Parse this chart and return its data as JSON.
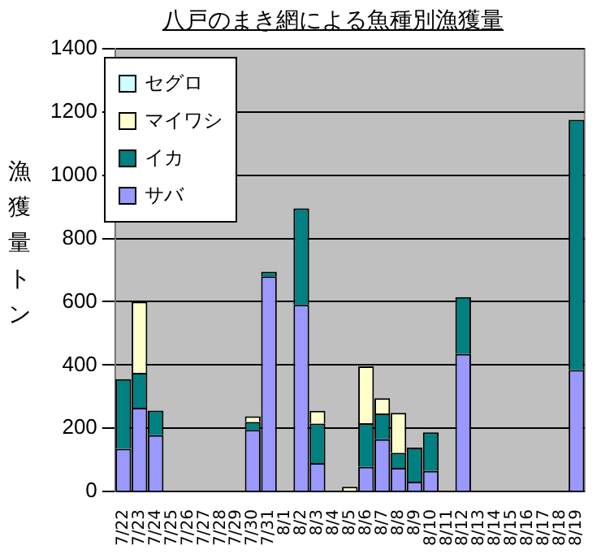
{
  "chart_data": {
    "type": "bar",
    "title": "八戸のまき網による魚種別漁獲量",
    "ylabel": "漁獲量トン",
    "stacked": true,
    "categories": [
      "7/22",
      "7/23",
      "7/24",
      "7/25",
      "7/26",
      "7/27",
      "7/28",
      "7/29",
      "7/30",
      "7/31",
      "8/1",
      "8/2",
      "8/3",
      "8/4",
      "8/5",
      "8/6",
      "8/7",
      "8/8",
      "8/9",
      "8/10",
      "8/11",
      "8/12",
      "8/13",
      "8/14",
      "8/15",
      "8/16",
      "8/17",
      "8/18",
      "8/19"
    ],
    "series": [
      {
        "name": "サバ",
        "color": "#9999ff",
        "values": [
          135,
          265,
          178,
          null,
          null,
          null,
          null,
          null,
          195,
          680,
          null,
          590,
          90,
          null,
          null,
          78,
          165,
          75,
          31,
          65,
          null,
          435,
          null,
          null,
          null,
          null,
          null,
          null,
          384
        ]
      },
      {
        "name": "イカ",
        "color": "#008080",
        "values": [
          220,
          110,
          78,
          null,
          null,
          null,
          null,
          null,
          25,
          15,
          null,
          305,
          125,
          null,
          null,
          138,
          82,
          47,
          108,
          122,
          null,
          180,
          null,
          null,
          null,
          null,
          null,
          null,
          791
        ]
      },
      {
        "name": "マイワシ",
        "color": "#ffffcc",
        "values": [
          null,
          225,
          null,
          null,
          null,
          null,
          null,
          null,
          18,
          null,
          null,
          null,
          40,
          null,
          15,
          180,
          48,
          127,
          null,
          null,
          null,
          null,
          null,
          null,
          null,
          null,
          null,
          null,
          null
        ]
      },
      {
        "name": "セグロ",
        "color": "#ccffff",
        "values": [
          null,
          null,
          null,
          null,
          null,
          null,
          null,
          null,
          null,
          null,
          null,
          null,
          null,
          null,
          null,
          null,
          null,
          null,
          null,
          null,
          null,
          null,
          null,
          null,
          null,
          null,
          null,
          null,
          null
        ]
      }
    ],
    "ylim": [
      0,
      1400
    ],
    "yticks": [
      0,
      200,
      400,
      600,
      800,
      1000,
      1200,
      1400
    ],
    "grid": "y",
    "legend": "top left"
  }
}
